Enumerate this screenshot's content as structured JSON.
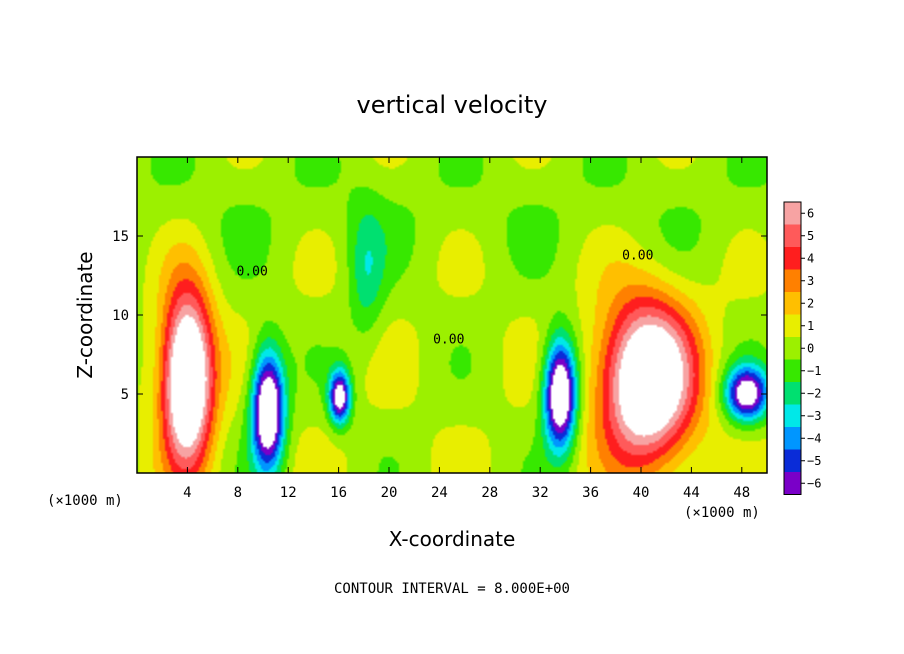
{
  "chart_data": {
    "type": "heatmap",
    "title": "vertical velocity",
    "xlabel": "X-coordinate",
    "ylabel": "Z-coordinate",
    "x_unit": "(×1000 m)",
    "x_unit_right": "(×1000 m)",
    "xlim": [
      0,
      50
    ],
    "ylim": [
      0,
      20
    ],
    "x_ticks": [
      4,
      8,
      12,
      16,
      20,
      24,
      28,
      32,
      36,
      40,
      44,
      48
    ],
    "y_ticks": [
      5,
      10,
      15
    ],
    "colorbar": {
      "levels": [
        6,
        5,
        4,
        3,
        2,
        1,
        0,
        -1,
        -2,
        -3,
        -4,
        -5,
        -6
      ],
      "labels": [
        "6",
        "5",
        "4",
        "3",
        "2",
        "1",
        "0",
        "−1",
        "−2",
        "−3",
        "−4",
        "−5",
        "−6"
      ],
      "colors": [
        "#f7a3a3",
        "#ff5a5a",
        "#ff1e1e",
        "#ff8000",
        "#ffbf00",
        "#e8ee00",
        "#9cf000",
        "#37e800",
        "#00e070",
        "#00e8e8",
        "#0096ff",
        "#0a2cd8",
        "#7a00c8"
      ]
    },
    "contour_labels": [
      {
        "text": "0.00",
        "x": 7.9,
        "z": 12.5
      },
      {
        "text": "0.00",
        "x": 23.5,
        "z": 8.2
      },
      {
        "text": "0.00",
        "x": 38.5,
        "z": 13.5
      }
    ],
    "contour_interval_text": "CONTOUR INTERVAL = 8.000E+00",
    "features": [
      {
        "sign": "up",
        "x": 4.0,
        "z": 6.0,
        "sx": 1.4,
        "sz": 3.8,
        "amp": 11
      },
      {
        "sign": "up",
        "x": 40.5,
        "z": 5.8,
        "sx": 2.6,
        "sz": 3.6,
        "amp": 10
      },
      {
        "sign": "down",
        "x": 10.4,
        "z": 4.0,
        "sx": 0.9,
        "sz": 2.6,
        "amp": -10
      },
      {
        "sign": "down",
        "x": 16.1,
        "z": 4.8,
        "sx": 0.6,
        "sz": 1.2,
        "amp": -8
      },
      {
        "sign": "down",
        "x": 33.6,
        "z": 5.0,
        "sx": 0.9,
        "sz": 2.4,
        "amp": -10
      },
      {
        "sign": "down",
        "x": 48.4,
        "z": 5.0,
        "sx": 1.2,
        "sz": 1.2,
        "amp": -8
      },
      {
        "sign": "down",
        "x": 18.2,
        "z": 12.5,
        "sx": 1.0,
        "sz": 3.0,
        "amp": -2.2
      }
    ]
  }
}
